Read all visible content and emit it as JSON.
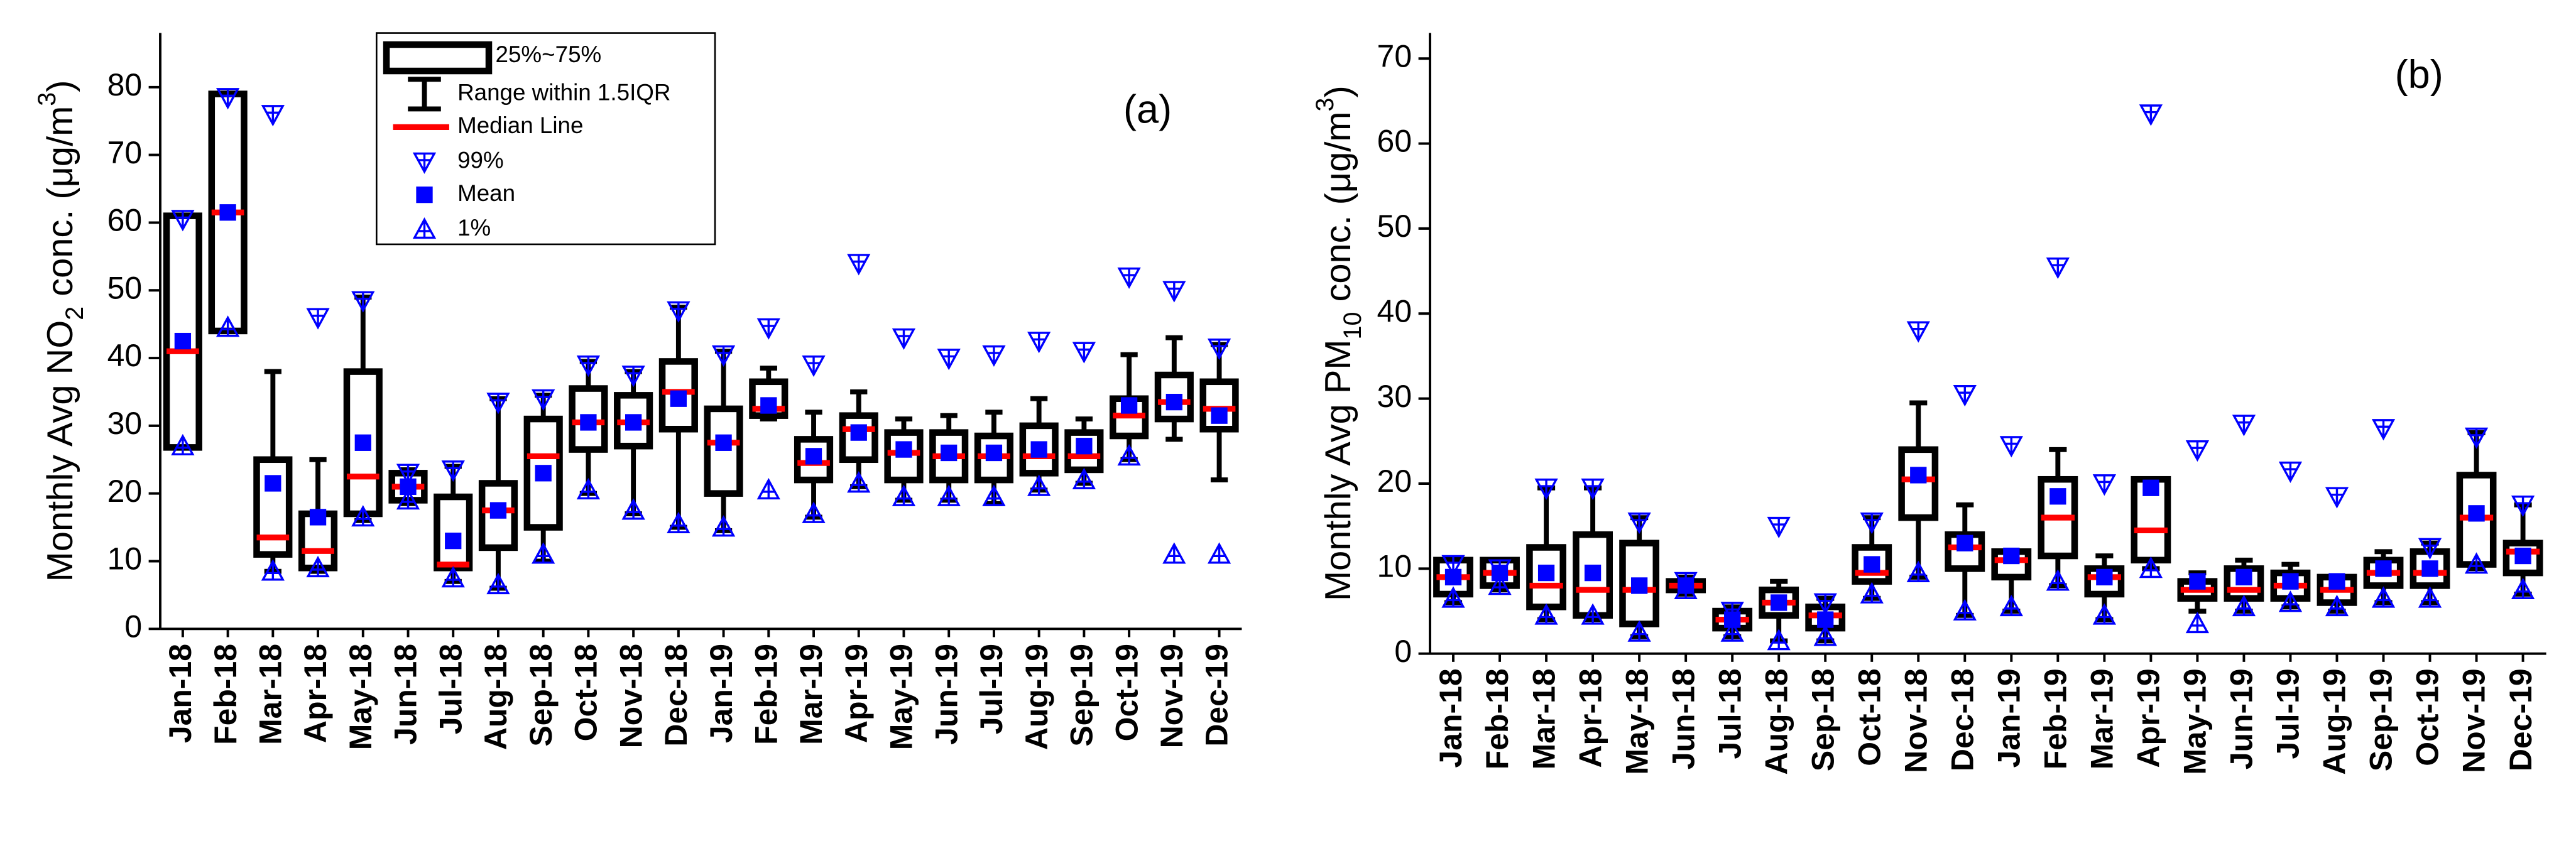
{
  "chart_data": [
    {
      "type": "box",
      "annotation": "(a)",
      "ylabel": [
        {
          "text": "Monthly Avg NO"
        },
        {
          "text": "2",
          "shift": "sub"
        },
        {
          "text": " conc. (μg/m"
        },
        {
          "text": "3",
          "shift": "super"
        },
        {
          "text": ")"
        }
      ],
      "categories": [
        "Jan-18",
        "Feb-18",
        "Mar-18",
        "Apr-18",
        "May-18",
        "Jun-18",
        "Jul-18",
        "Aug-18",
        "Sep-18",
        "Oct-18",
        "Nov-18",
        "Dec-18",
        "Jan-19",
        "Feb-19",
        "Mar-19",
        "Apr-19",
        "May-19",
        "Jun-19",
        "Jul-19",
        "Aug-19",
        "Sep-19",
        "Oct-19",
        "Nov-19",
        "Dec-19"
      ],
      "q1": [
        26.8,
        44,
        11,
        9,
        17,
        19,
        9,
        12,
        15,
        26.5,
        27,
        29.5,
        20,
        31.5,
        22,
        25,
        22,
        22,
        22,
        23,
        23.5,
        28.5,
        31,
        29.5
      ],
      "median": [
        41,
        61.5,
        13.5,
        11.5,
        22.5,
        21,
        9.5,
        17.5,
        25.5,
        30.5,
        30.5,
        35,
        27.5,
        32.5,
        24.5,
        29.5,
        26,
        25.5,
        25.5,
        25.5,
        25.5,
        31.5,
        33.5,
        32.5
      ],
      "q3": [
        61,
        79,
        25,
        17,
        38,
        23,
        19.5,
        21.5,
        31,
        35.5,
        34.5,
        39.5,
        32.5,
        36.5,
        28,
        31.5,
        29,
        29,
        28.5,
        30,
        29,
        34,
        37.5,
        36.5
      ],
      "whisker_low": [
        26.8,
        44,
        8.5,
        8.5,
        16,
        18.5,
        7,
        6,
        10,
        20,
        17,
        15,
        14.5,
        31,
        16.5,
        21,
        19,
        19,
        18.5,
        20.5,
        21.5,
        25,
        28,
        22
      ],
      "whisker_high": [
        61,
        79,
        38,
        25,
        49,
        23.5,
        24,
        34,
        34.5,
        39.5,
        38,
        47.5,
        41,
        38.5,
        32,
        35,
        31,
        31.5,
        32,
        34,
        31,
        40.5,
        43,
        42
      ],
      "mean": [
        42.5,
        61.5,
        21.5,
        16.5,
        27.5,
        21,
        13,
        17.5,
        23,
        30.5,
        30.5,
        34,
        27.5,
        33,
        25.5,
        29,
        26.5,
        26,
        26,
        26.5,
        27,
        33,
        33.5,
        31.5
      ],
      "p1": [
        27,
        44.5,
        8.5,
        9,
        16.5,
        19,
        7.5,
        6.5,
        11,
        20.5,
        17.5,
        15.5,
        15,
        20.5,
        17,
        21.5,
        19.5,
        19.5,
        19.5,
        21,
        22,
        25.5,
        11,
        11
      ],
      "p99": [
        60.5,
        78.5,
        76,
        46,
        48.5,
        23,
        23.5,
        33.5,
        34,
        39,
        37.5,
        47,
        40.5,
        44.5,
        39,
        54,
        43,
        40,
        40.5,
        42.5,
        41,
        52,
        50,
        41.5
      ],
      "ylim": [
        0,
        88
      ],
      "yticks": [
        0,
        10,
        20,
        30,
        40,
        50,
        60,
        70,
        80
      ],
      "colors": {
        "box": "#000000",
        "median": "#ff0000",
        "mean": "#0000ff",
        "percentile": "#0000ff"
      },
      "legend": {
        "box": "25%~75%",
        "whisker": "Range within 1.5IQR",
        "median": "Median Line",
        "p99": "99%",
        "mean": "Mean",
        "p1": "1%"
      }
    },
    {
      "type": "box",
      "annotation": "(b)",
      "ylabel": [
        {
          "text": "Monthly Avg PM"
        },
        {
          "text": "10",
          "shift": "sub"
        },
        {
          "text": " conc. (μg/m"
        },
        {
          "text": "3",
          "shift": "super"
        },
        {
          "text": ")"
        }
      ],
      "categories": [
        "Jan-18",
        "Feb-18",
        "Mar-18",
        "Apr-18",
        "May-18",
        "Jun-18",
        "Jul-18",
        "Aug-18",
        "Sep-18",
        "Oct-18",
        "Nov-18",
        "Dec-18",
        "Jan-19",
        "Feb-19",
        "Mar-19",
        "Apr-19",
        "May-19",
        "Jun-19",
        "Jul-19",
        "Aug-19",
        "Sep-19",
        "Oct-19",
        "Nov-19",
        "Dec-19"
      ],
      "q1": [
        7,
        8,
        5.5,
        4.5,
        3.5,
        7.5,
        3,
        4.5,
        3,
        8.5,
        16,
        10,
        9,
        11.5,
        7,
        11,
        6.5,
        6.5,
        6.5,
        6,
        8,
        8,
        10.5,
        9.5
      ],
      "median": [
        9,
        9.5,
        8,
        7.5,
        7.5,
        8,
        4,
        6,
        4.5,
        9.5,
        20.5,
        12.5,
        11,
        16,
        9,
        14.5,
        7.5,
        7.5,
        8,
        7.5,
        9.5,
        9.5,
        16,
        12
      ],
      "q3": [
        11,
        11,
        12.5,
        14,
        13,
        8.5,
        5,
        7.5,
        5.5,
        12.5,
        24,
        14,
        12,
        20.5,
        10,
        20.5,
        8.5,
        10,
        9.5,
        9,
        11,
        12,
        21,
        13
      ],
      "whisker_low": [
        6,
        7.5,
        4,
        4,
        2,
        7,
        2,
        1.5,
        1.5,
        6.5,
        9,
        4.5,
        5,
        8,
        4,
        10,
        5,
        5,
        5.5,
        5,
        6,
        6,
        10,
        7
      ],
      "whisker_high": [
        11,
        11,
        19.5,
        19.5,
        16,
        9,
        5.5,
        8.5,
        6.5,
        16,
        29.5,
        17.5,
        12,
        24,
        11.5,
        20.5,
        9.5,
        11,
        10.5,
        9,
        12,
        13,
        26,
        17.5
      ],
      "mean": [
        9,
        9.5,
        9.5,
        9.5,
        8,
        8,
        4,
        6,
        4,
        10.5,
        21,
        13,
        11.5,
        18.5,
        9,
        19.5,
        8.5,
        9,
        8.5,
        8.5,
        10,
        10,
        16.5,
        11.5
      ],
      "p1": [
        6.5,
        8,
        4.5,
        4.5,
        2.5,
        7.5,
        2.5,
        1.5,
        2,
        7,
        9.5,
        5,
        5.5,
        8.5,
        4.5,
        10,
        3.5,
        5.5,
        6,
        5.5,
        6.5,
        6.5,
        10.5,
        7.5
      ],
      "p99": [
        10.5,
        10,
        19.5,
        19.5,
        15.5,
        8.5,
        5,
        15,
        6,
        15.5,
        38,
        30.5,
        24.5,
        45.5,
        20,
        63.5,
        24,
        27,
        21.5,
        18.5,
        26.5,
        12.5,
        25.5,
        17.5
      ],
      "ylim": [
        0,
        73
      ],
      "yticks": [
        0,
        10,
        20,
        30,
        40,
        50,
        60,
        70
      ],
      "colors": {
        "box": "#000000",
        "median": "#ff0000",
        "mean": "#0000ff",
        "percentile": "#0000ff"
      }
    }
  ]
}
